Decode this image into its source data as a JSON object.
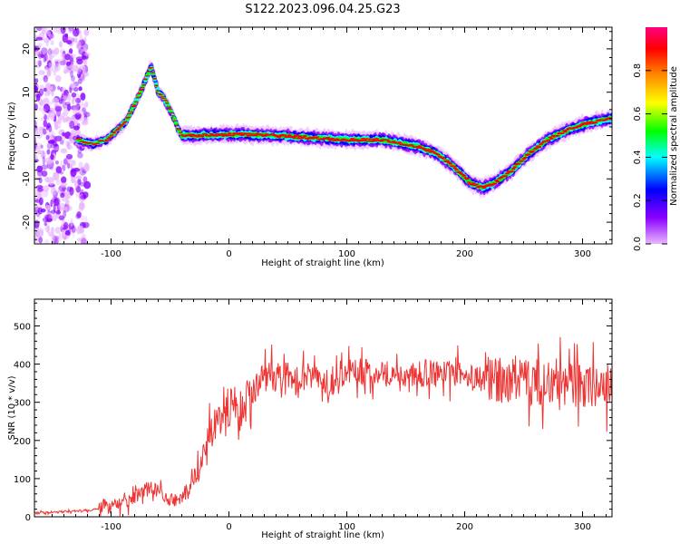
{
  "chart_data": [
    {
      "type": "heatmap",
      "title": "S122.2023.096.04.25.G23",
      "xlabel": "Height of straight line (km)",
      "ylabel": "Frequency (Hz)",
      "xlim": [
        -165,
        325
      ],
      "ylim": [
        -25,
        25
      ],
      "x_ticks": [
        "-100",
        "0",
        "100",
        "200",
        "300"
      ],
      "y_ticks": [
        "-20",
        "-10",
        "0",
        "10",
        "20"
      ],
      "ridge": {
        "x": [
          -128,
          -115,
          -104,
          -96,
          -88,
          -80,
          -72,
          -66,
          -60,
          -56,
          -52,
          -48,
          -44,
          -40,
          -30,
          -10,
          10,
          40,
          70,
          100,
          130,
          140,
          150,
          160,
          175,
          190,
          205,
          215,
          225,
          240,
          255,
          270,
          285,
          300,
          315,
          325
        ],
        "y": [
          -1,
          -2,
          -1,
          1,
          3,
          7,
          12,
          16,
          10,
          9,
          7,
          5,
          2,
          0,
          0,
          0.2,
          0.3,
          0,
          -0.5,
          -1,
          -1,
          -1.5,
          -2,
          -2.5,
          -4,
          -7,
          -11,
          -12,
          -11,
          -8,
          -4,
          -1,
          1,
          2.5,
          3.5,
          4
        ]
      },
      "colorbar": {
        "label": "Normalized spectral amplitude",
        "range": [
          0,
          1
        ],
        "ticks": [
          "0.0",
          "0.2",
          "0.4",
          "0.6",
          "0.8"
        ],
        "colors": [
          "#e8b8ff",
          "#8a00ff",
          "#0000ff",
          "#00ffff",
          "#00ff00",
          "#ffff00",
          "#ff8800",
          "#ff0000",
          "#ff0080"
        ]
      }
    },
    {
      "type": "line",
      "xlabel": "Height of straight line (km)",
      "ylabel": "SNR (10 * v/v)",
      "xlim": [
        -165,
        325
      ],
      "ylim": [
        0,
        570
      ],
      "x_ticks": [
        "-100",
        "0",
        "100",
        "200",
        "300"
      ],
      "y_ticks": [
        "0",
        "100",
        "200",
        "300",
        "400",
        "500"
      ],
      "color": "#ee3333",
      "series": [
        {
          "x": [
            -165,
            -150,
            -130,
            -110,
            -100,
            -90,
            -80,
            -72,
            -65,
            -58,
            -50,
            -42,
            -35,
            -28,
            -20,
            -12,
            -5,
            0,
            5,
            10,
            15,
            20,
            25,
            30,
            35,
            40,
            50,
            60,
            70,
            80,
            90,
            100,
            110,
            120,
            130,
            140,
            150,
            160,
            170,
            180,
            190,
            200,
            210,
            220,
            230,
            240,
            250,
            260,
            270,
            280,
            290,
            300,
            310,
            320,
            325
          ],
          "y": [
            10,
            12,
            15,
            20,
            25,
            35,
            50,
            70,
            80,
            60,
            45,
            40,
            60,
            120,
            180,
            230,
            260,
            280,
            310,
            250,
            330,
            320,
            340,
            360,
            380,
            370,
            370,
            360,
            370,
            360,
            350,
            370,
            380,
            380,
            380,
            370,
            370,
            370,
            380,
            370,
            375,
            370,
            360,
            365,
            360,
            355,
            350,
            355,
            345,
            350,
            345,
            340,
            345,
            340,
            345
          ]
        }
      ]
    }
  ]
}
